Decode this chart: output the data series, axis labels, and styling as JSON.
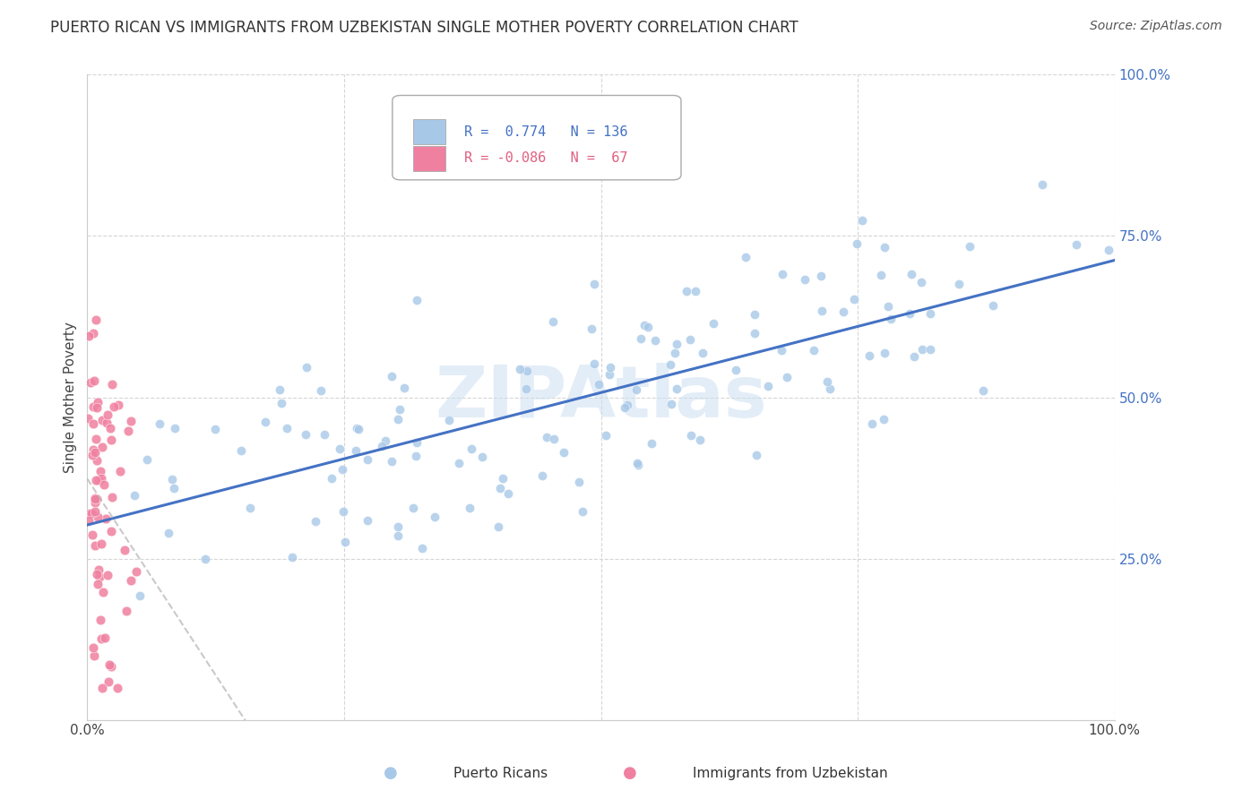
{
  "title": "PUERTO RICAN VS IMMIGRANTS FROM UZBEKISTAN SINGLE MOTHER POVERTY CORRELATION CHART",
  "source": "Source: ZipAtlas.com",
  "ylabel": "Single Mother Poverty",
  "blue_color": "#a8c8e8",
  "pink_color": "#f080a0",
  "blue_line_color": "#4472c4",
  "pink_line_color": "#b8a0a8",
  "watermark_text": "ZIPAtlas",
  "watermark_color": "#c8ddf0",
  "xlim": [
    0.0,
    1.0
  ],
  "ylim": [
    0.0,
    1.0
  ],
  "figsize": [
    14.06,
    8.92
  ],
  "dpi": 100,
  "r_pr": 0.774,
  "n_pr": 136,
  "r_uz": -0.086,
  "n_uz": 67,
  "y_tick_color": "#4472c4",
  "title_color": "#333333",
  "source_color": "#555555"
}
